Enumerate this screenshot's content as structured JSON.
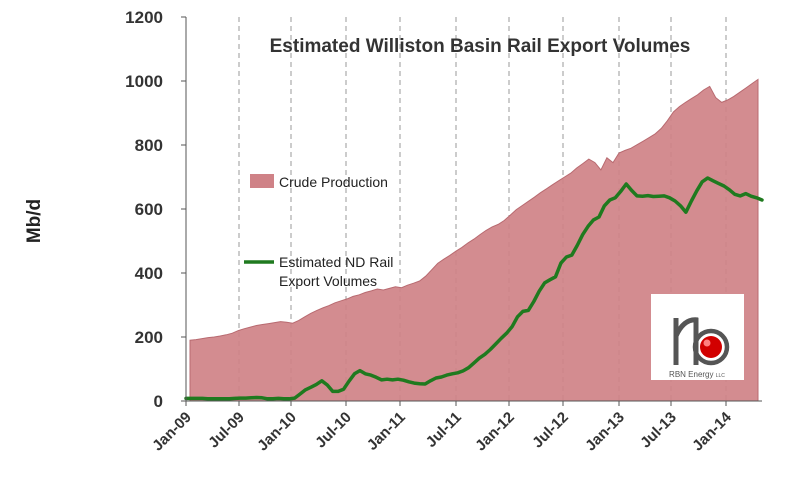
{
  "chart_data": {
    "type": "area",
    "title": "Estimated Williston Basin Rail Export Volumes",
    "xlabel": "",
    "ylabel": "Mb/d",
    "ylim": [
      0,
      1200
    ],
    "yticks": [
      0,
      200,
      400,
      600,
      800,
      1000,
      1200
    ],
    "x_tick_labels": [
      "Jan-09",
      "Jul-09",
      "Jan-10",
      "Jul-10",
      "Jan-11",
      "Jul-11",
      "Jan-12",
      "Jul-12",
      "Jan-13",
      "Jul-13",
      "Jan-14"
    ],
    "grid": "vertical dashed",
    "colors": {
      "crude_fill": "#cf8287",
      "crude_stroke": "#b86a70",
      "rail_line": "#1f7a1f",
      "axis_text": "#333333",
      "logo_red": "#d20000"
    },
    "legend": [
      {
        "label": "Crude Production",
        "kind": "area"
      },
      {
        "label_lines": [
          "Estimated ND Rail",
          "Export Volumes"
        ],
        "kind": "line"
      }
    ],
    "series": [
      {
        "name": "Crude Production",
        "type": "area",
        "values": [
          190,
          192,
          195,
          198,
          200,
          203,
          207,
          212,
          220,
          226,
          231,
          236,
          239,
          242,
          245,
          248,
          246,
          243,
          252,
          263,
          274,
          283,
          291,
          298,
          307,
          313,
          319,
          327,
          332,
          339,
          344,
          350,
          347,
          352,
          357,
          354,
          362,
          368,
          375,
          390,
          410,
          430,
          443,
          455,
          468,
          480,
          494,
          506,
          520,
          533,
          544,
          552,
          564,
          581,
          598,
          611,
          624,
          637,
          651,
          663,
          676,
          688,
          700,
          712,
          728,
          742,
          756,
          745,
          722,
          760,
          745,
          775,
          783,
          790,
          801,
          812,
          823,
          835,
          852,
          876,
          903,
          920,
          933,
          945,
          957,
          972,
          983,
          948,
          933,
          941,
          952,
          965,
          978,
          992,
          1005
        ]
      },
      {
        "name": "Estimated ND Rail Export Volumes",
        "type": "line",
        "values": [
          8,
          8,
          8,
          8,
          7,
          7,
          7,
          7,
          7,
          8,
          9,
          9,
          10,
          11,
          10,
          7,
          7,
          8,
          7,
          7,
          9,
          22,
          35,
          43,
          52,
          63,
          50,
          30,
          30,
          37,
          62,
          85,
          95,
          85,
          81,
          74,
          66,
          68,
          66,
          68,
          65,
          60,
          56,
          54,
          53,
          63,
          72,
          75,
          81,
          85,
          88,
          94,
          104,
          119,
          134,
          146,
          161,
          178,
          196,
          212,
          232,
          263,
          280,
          283,
          311,
          343,
          369,
          379,
          388,
          431,
          450,
          456,
          486,
          520,
          546,
          566,
          575,
          610,
          628,
          635,
          655,
          678,
          658,
          641,
          640,
          642,
          639,
          640,
          641,
          635,
          625,
          610,
          590,
          625,
          657,
          685,
          697,
          688,
          680,
          672,
          660,
          646,
          641,
          648,
          640,
          635,
          628
        ]
      }
    ],
    "logo": {
      "brand": "RBN Energy",
      "suffix": "LLC"
    }
  }
}
